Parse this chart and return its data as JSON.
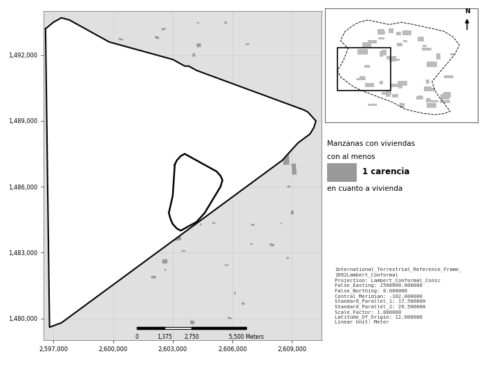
{
  "xlim": [
    2596500,
    2610500
  ],
  "ylim": [
    1479000,
    1494000
  ],
  "xticks": [
    2597000,
    2600000,
    2603000,
    2606000,
    2609000
  ],
  "yticks": [
    1480000,
    1483000,
    1486000,
    1489000,
    1492000
  ],
  "background_color": "#ffffff",
  "gray_color": "#999999",
  "legend_title_line1": "Manzanas con viviendas",
  "legend_title_line2": "con al menos",
  "legend_label": "1 carencia",
  "legend_sublabel": "en cuanto a vivienda",
  "proj_text": "International_Terrestrial_Reference_Frame_\n1992Lambert_Conformal\nProjection: Lambert_Conformal_Conic\nFalse_Easting: 2500000.000000\nFalse_Northing: 0.000000\nCentral_Meridian: -102.000000\nStandard_Parallel_1: 17.500000\nStandard_Parallel_2: 29.500000\nScale_Factor: 1.000000\nLatitude_Of_Origin: 12.000000\nLinear Unit: Meter",
  "grid_color": "#cccccc",
  "tick_fontsize": 6.0
}
